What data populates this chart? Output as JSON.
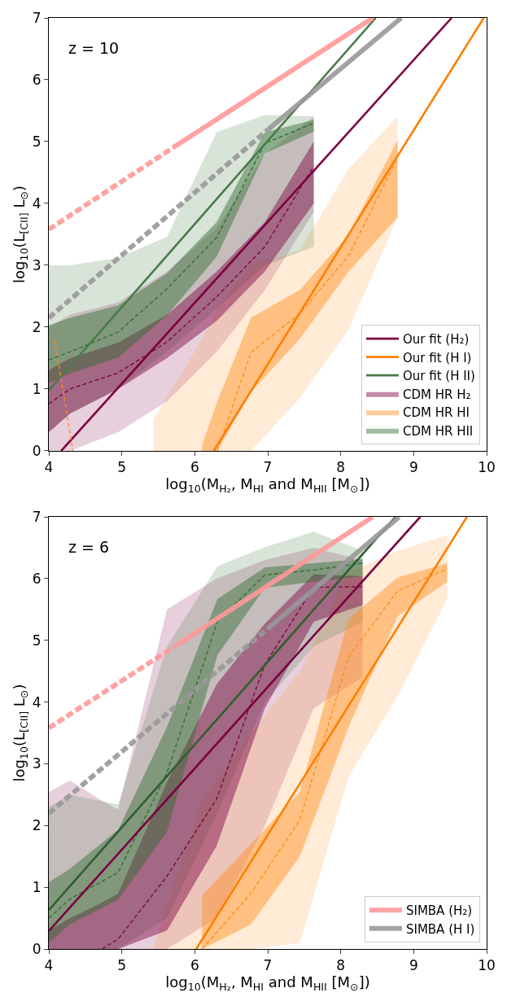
{
  "chart_data": [
    {
      "type": "line",
      "annotations": [
        "z = 10"
      ],
      "xlabel": "log$_{10}$(M$_{H₂}$, M$_{HI}$ and M$_{HII}$ [M$_{⊙}$])",
      "ylabel": "log$_{10}$(L$_{[CII]}$ L$_{⊙}$)",
      "xlim": [
        4,
        10
      ],
      "xticks": [
        4,
        5,
        6,
        7,
        8,
        9,
        10
      ],
      "ylim": [
        0,
        7
      ],
      "yticks": [
        0,
        1,
        2,
        3,
        4,
        5,
        6,
        7
      ],
      "legend": "bottom right",
      "series": [
        {
          "color": "#ff9999",
          "line_style": "dotted",
          "x": [
            4,
            5.7
          ],
          "values": [
            3.58,
            4.9
          ]
        },
        {
          "color": "#ff9999",
          "line_style": "solid",
          "x": [
            5.7,
            8.44
          ],
          "values": [
            4.9,
            7
          ]
        },
        {
          "color": "#999999",
          "line_style": "dotted",
          "x": [
            4,
            7.0
          ],
          "values": [
            2.15,
            5.19
          ]
        },
        {
          "color": "#999999",
          "line_style": "solid",
          "x": [
            7.0,
            8.83
          ],
          "values": [
            5.19,
            7
          ]
        },
        {
          "color": "#8a1050",
          "x": [
            4,
            4.29,
            4.95,
            5.62,
            6.3,
            6.96,
            7.63
          ],
          "values": [
            null,
            null,
            null,
            null,
            null,
            null,
            null
          ],
          "lower": [
            0,
            0,
            0.3,
            0.8,
            1.6,
            2.6,
            3.86
          ],
          "upper": [
            2.0,
            2.2,
            2.4,
            2.9,
            3.6,
            4.8,
            5.4
          ]
        },
        {
          "color": "#ff9933",
          "x": [
            5.43,
            6.1,
            6.31,
            6.77,
            7.44,
            8.11,
            8.78
          ],
          "values": [
            null,
            null,
            null,
            null,
            null,
            null,
            null
          ],
          "lower": [
            0,
            0,
            0,
            0,
            0.85,
            1.97,
            3.78
          ],
          "upper": [
            0.5,
            1.8,
            2.3,
            3.0,
            3.25,
            4.56,
            5.41
          ]
        },
        {
          "color": "#3a7a3a",
          "x": [
            4,
            4.29,
            4.95,
            5.62,
            6.3,
            6.96,
            7.63
          ],
          "values": [
            null,
            null,
            null,
            null,
            null,
            null,
            null
          ],
          "lower": [
            0.3,
            0.6,
            1.0,
            1.6,
            2.3,
            3.0,
            3.3
          ],
          "upper": [
            3.0,
            3.0,
            3.12,
            3.46,
            5.15,
            5.43,
            5.41
          ]
        },
        {
          "name": "CDM HR H₂",
          "color": "#7b0041",
          "line_style": "dashed",
          "x": [
            4,
            4.29,
            4.95,
            5.62,
            6.3,
            6.96,
            7.63
          ],
          "values": [
            0.76,
            1.0,
            1.26,
            1.76,
            2.49,
            3.3,
            4.6
          ],
          "lower": [
            0.3,
            0.6,
            1.0,
            1.5,
            2.1,
            2.9,
            4.0
          ],
          "upper": [
            1.3,
            1.5,
            1.75,
            2.2,
            2.9,
            3.7,
            5.0
          ]
        },
        {
          "name": "CDM HR HI",
          "color": "#ff8c1a",
          "line_style": "dashed",
          "x": [
            6.1,
            6.31,
            6.77,
            7.44,
            8.11,
            8.78
          ],
          "values": [
            null,
            0,
            1.59,
            2.22,
            3.16,
            4.74
          ],
          "lower": [
            0,
            0,
            0.95,
            1.81,
            2.9,
            3.78
          ],
          "upper": [
            0.1,
            0.8,
            2.15,
            2.6,
            3.5,
            5.03
          ]
        },
        {
          "name": "CDM HR HII",
          "color": "#2f6b2f",
          "line_style": "dashed",
          "x": [
            4,
            4.29,
            4.95,
            5.62,
            6.3,
            6.96,
            7.63
          ],
          "values": [
            1.47,
            1.6,
            1.92,
            2.62,
            3.45,
            4.97,
            5.3
          ],
          "lower": [
            1.1,
            1.25,
            1.51,
            2.19,
            3.14,
            4.81,
            5.16
          ],
          "upper": [
            2.03,
            2.15,
            2.35,
            2.87,
            3.7,
            5.15,
            5.35
          ]
        },
        {
          "name": "Our fit (H₂)",
          "color": "#7b0041",
          "line_style": "solid",
          "x": [
            4.17,
            9.52
          ],
          "values": [
            0,
            7
          ]
        },
        {
          "name": "Our fit (H I)",
          "color": "#ff7f00",
          "line_style": "solid",
          "x": [
            6.26,
            9.96
          ],
          "values": [
            0,
            7
          ]
        },
        {
          "name": "Our fit (H II)",
          "color": "#4a7a4a",
          "line_style": "solid",
          "x": [
            4,
            8.48
          ],
          "values": [
            0.98,
            7
          ]
        },
        {
          "color": "#ff8c1a",
          "line_style": "dashed",
          "x": [
            4.08,
            4.33
          ],
          "values": [
            1.8,
            0
          ]
        }
      ]
    },
    {
      "type": "line",
      "annotations": [
        "z = 6"
      ],
      "xlabel": "log$_{10}$(M$_{H₂}$, M$_{HI}$ and M$_{HII}$ [M$_{⊙}$])",
      "ylabel": "log$_{10}$(L$_{[CII]}$ L$_{⊙}$)",
      "xlim": [
        4,
        10
      ],
      "xticks": [
        4,
        5,
        6,
        7,
        8,
        9,
        10
      ],
      "ylim": [
        0,
        7
      ],
      "yticks": [
        0,
        1,
        2,
        3,
        4,
        5,
        6,
        7
      ],
      "legend": "bottom right",
      "series": [
        {
          "color": "#ff9999",
          "line_style": "dotted",
          "x": [
            4,
            5.75
          ],
          "values": [
            3.58,
            4.92
          ]
        },
        {
          "name": "SIMBA (H₂)",
          "color": "#ff9999",
          "line_style": "solid",
          "x": [
            5.75,
            8.44
          ],
          "values": [
            4.92,
            7
          ]
        },
        {
          "color": "#999999",
          "line_style": "dotted",
          "x": [
            4,
            7.0
          ],
          "values": [
            2.2,
            5.19
          ]
        },
        {
          "name": "SIMBA (H I)",
          "color": "#999999",
          "line_style": "solid",
          "x": [
            7.0,
            8.8
          ],
          "values": [
            5.19,
            7
          ]
        },
        {
          "color": "#8a1050",
          "x": [
            4,
            4.29,
            4.73,
            4.95,
            5.62,
            6.3,
            6.96,
            7.63,
            8.3
          ],
          "values": [
            null,
            null,
            null,
            null,
            null,
            null,
            null,
            null,
            null
          ],
          "lower": [
            0,
            0,
            0,
            0,
            0,
            0.5,
            2.0,
            3.9,
            4.4
          ],
          "upper": [
            2.54,
            2.73,
            2.4,
            2.26,
            5.5,
            6.0,
            6.3,
            6.5,
            6.3
          ]
        },
        {
          "color": "#ff9933",
          "x": [
            5.42,
            6.1,
            6.77,
            7.44,
            8.11,
            8.78,
            9.46
          ],
          "values": [
            null,
            null,
            null,
            null,
            null,
            null,
            null
          ],
          "lower": [
            0,
            0,
            0,
            0.1,
            2.8,
            4.1,
            5.67
          ],
          "upper": [
            0,
            2.4,
            3.5,
            4.5,
            6.1,
            6.45,
            6.7
          ]
        },
        {
          "color": "#3a7a3a",
          "x": [
            4,
            4.29,
            4.95,
            5.62,
            6.31,
            6.96,
            7.63,
            8.3
          ],
          "values": [
            null,
            null,
            null,
            null,
            null,
            null,
            null,
            null
          ],
          "lower": [
            0,
            0,
            0,
            0.5,
            2.2,
            4.0,
            4.9,
            5.3
          ],
          "upper": [
            2.3,
            2.5,
            2.34,
            4.9,
            6.2,
            6.51,
            6.76,
            6.45
          ]
        },
        {
          "color": "#7b0041",
          "line_style": "dashed",
          "x": [
            4,
            4.29,
            4.73,
            4.95,
            5.62,
            6.3,
            6.96,
            7.63,
            8.3
          ],
          "values": [
            null,
            null,
            0,
            0.16,
            1.18,
            2.43,
            4.61,
            5.86,
            5.87
          ],
          "lower": [
            0,
            0,
            0,
            0,
            0.3,
            1.67,
            3.9,
            5.3,
            5.57
          ],
          "upper": [
            0.3,
            0.5,
            0.75,
            0.9,
            2.7,
            4.29,
            5.27,
            6.07,
            6.04
          ]
        },
        {
          "color": "#ff8c1a",
          "line_style": "dashed",
          "x": [
            6.1,
            6.77,
            7.44,
            8.11,
            8.78,
            9.46
          ],
          "values": [
            0,
            0.9,
            2.09,
            4.74,
            5.8,
            6.16
          ],
          "lower": [
            0,
            0.4,
            1.5,
            3.6,
            5.39,
            5.95
          ],
          "upper": [
            0.87,
            1.7,
            2.54,
            5.35,
            6.02,
            6.25
          ]
        },
        {
          "color": "#2f6b2f",
          "line_style": "dashed",
          "x": [
            4,
            4.29,
            4.95,
            5.62,
            6.31,
            6.96,
            7.63,
            8.3
          ],
          "values": [
            0.5,
            0.81,
            1.24,
            2.86,
            5.3,
            6.06,
            6.14,
            6.25
          ],
          "lower": [
            0.1,
            0.4,
            0.8,
            1.9,
            4.76,
            5.85,
            5.95,
            6.04
          ],
          "upper": [
            1.08,
            1.3,
            1.93,
            3.6,
            5.67,
            6.18,
            6.25,
            6.32
          ]
        },
        {
          "color": "#7b0041",
          "line_style": "solid",
          "x": [
            4,
            9.09
          ],
          "values": [
            0.29,
            7
          ]
        },
        {
          "color": "#ff7f00",
          "line_style": "solid",
          "x": [
            6.02,
            9.73
          ],
          "values": [
            0,
            7
          ]
        },
        {
          "color": "#2f5f2f",
          "line_style": "solid",
          "x": [
            4,
            8.75
          ],
          "values": [
            0.63,
            7
          ]
        }
      ]
    }
  ]
}
